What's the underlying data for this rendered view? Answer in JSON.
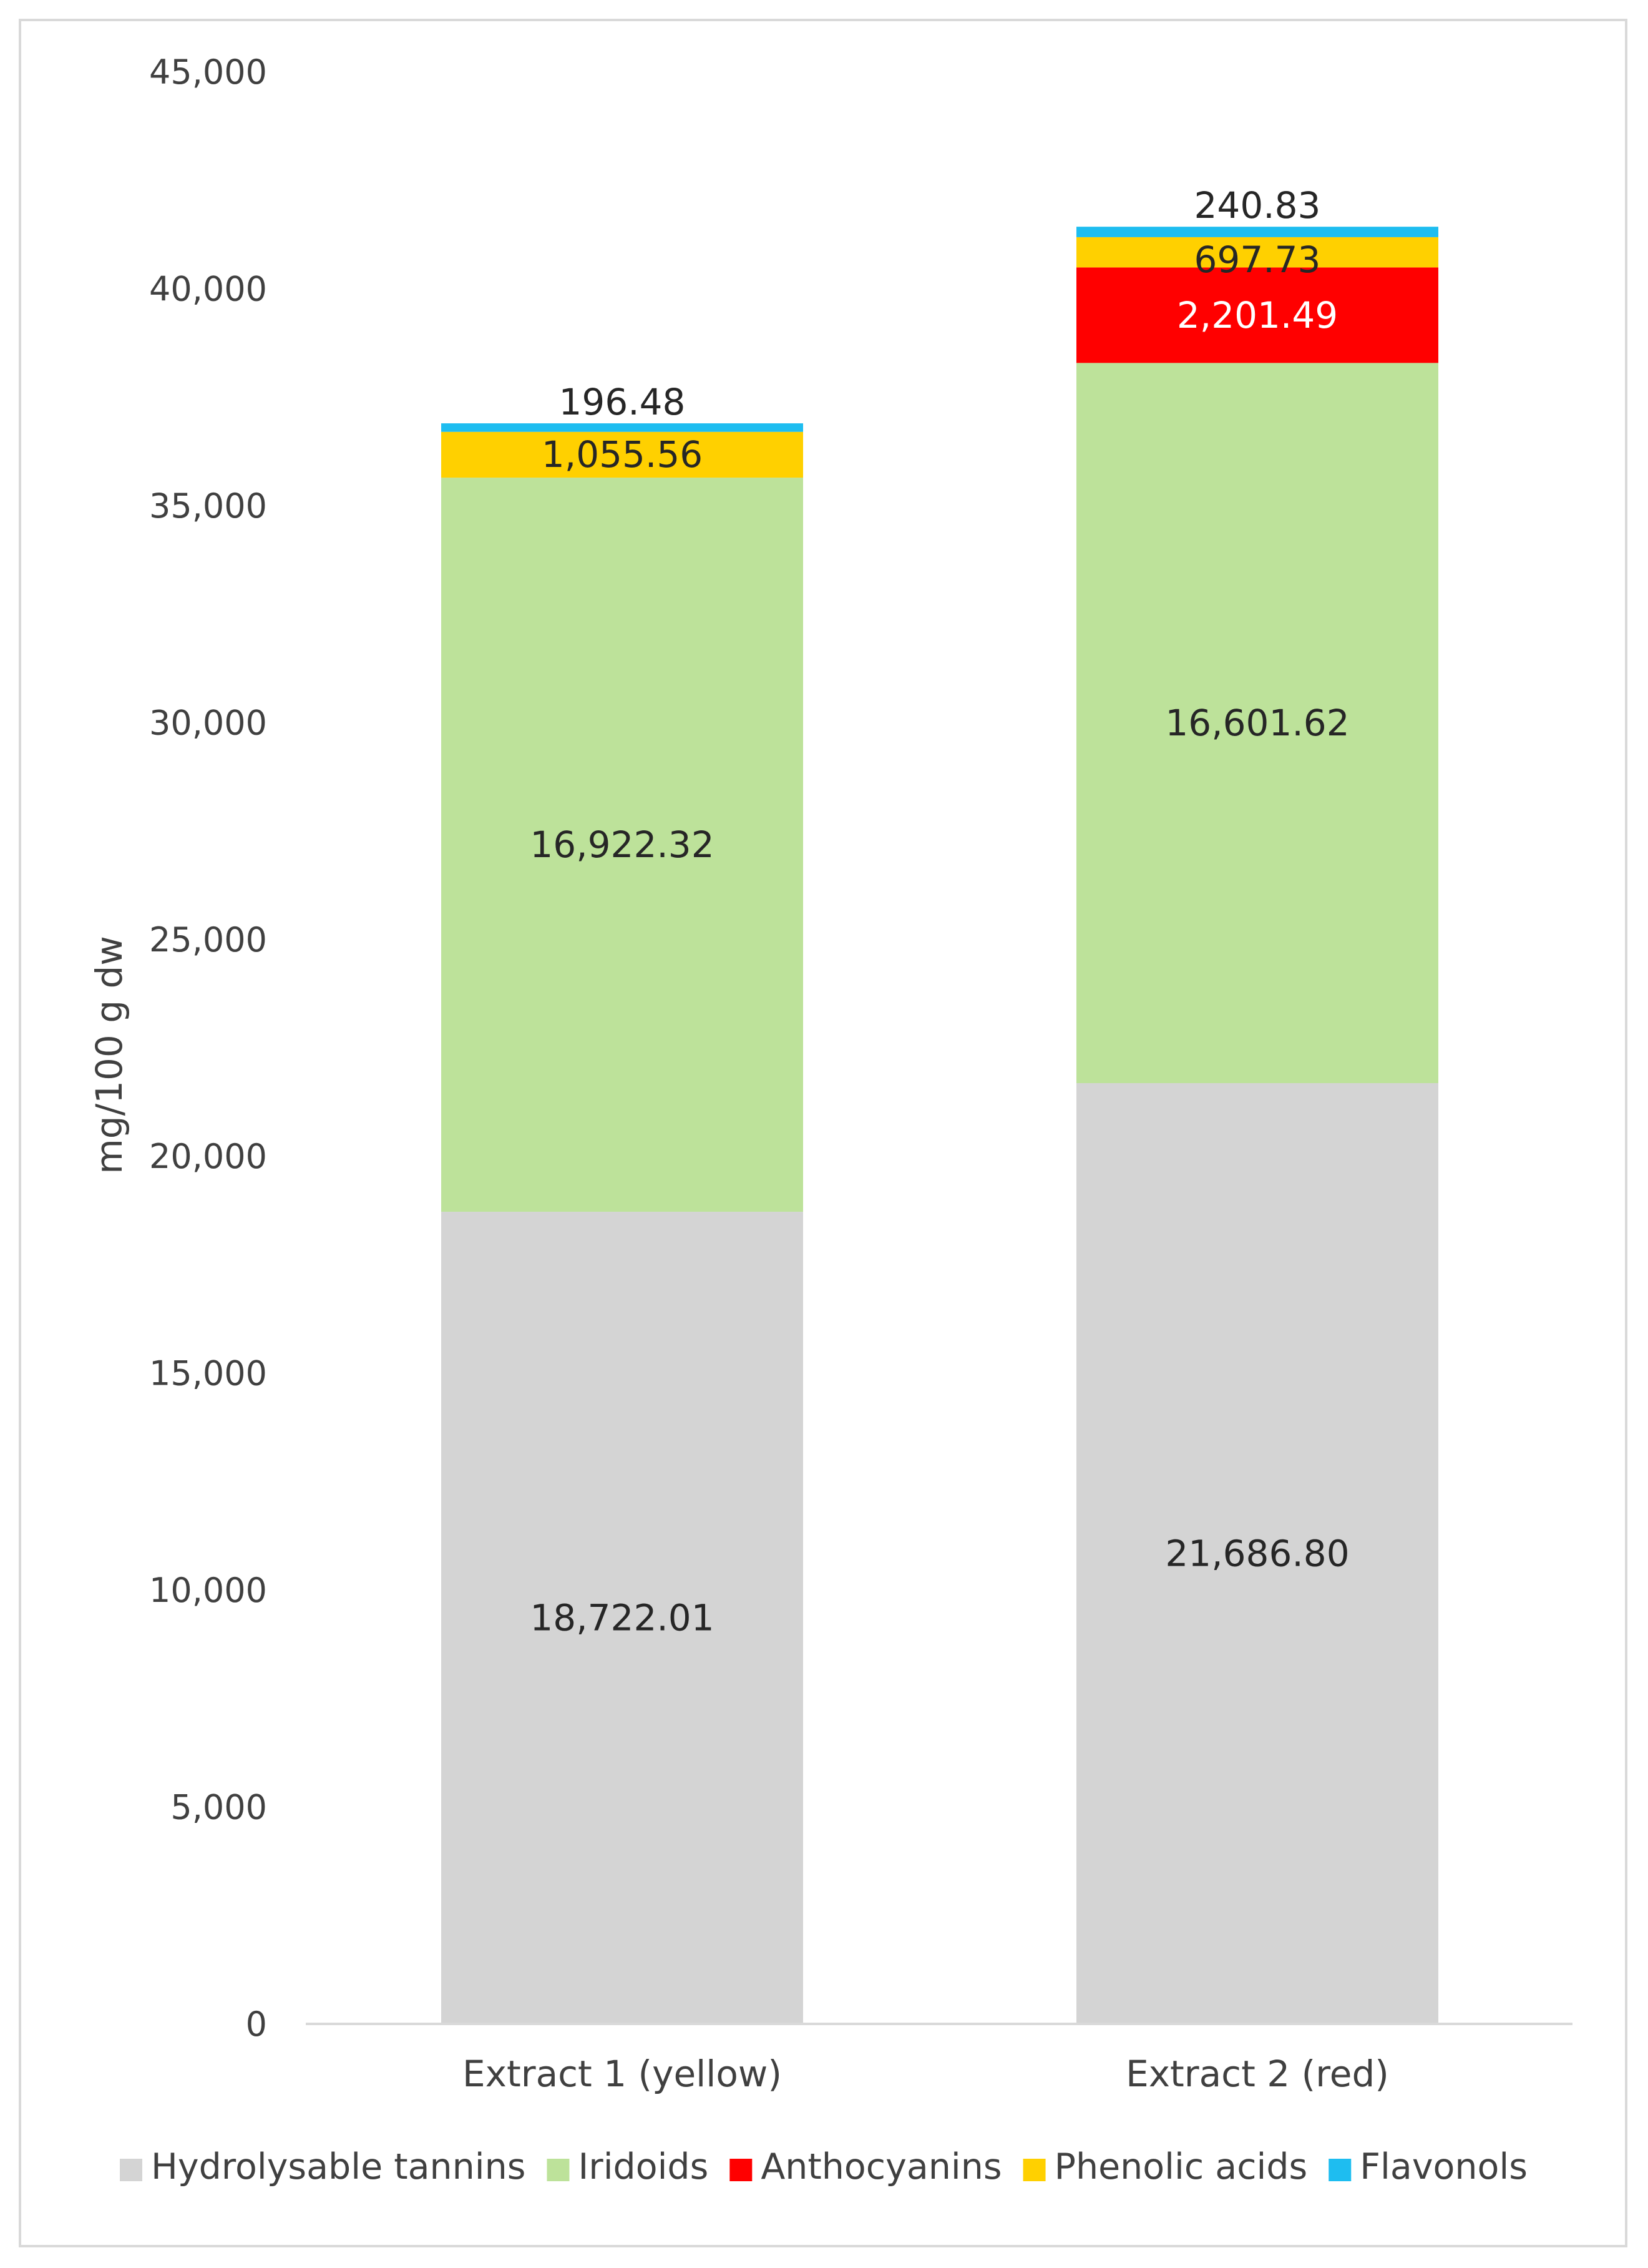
{
  "chart_data": {
    "type": "bar",
    "stacked": true,
    "title": "",
    "xlabel": "",
    "ylabel": "mg/100 g dw",
    "ylim": [
      0,
      45000
    ],
    "yticks": [
      0,
      5000,
      10000,
      15000,
      20000,
      25000,
      30000,
      35000,
      40000,
      45000
    ],
    "ytick_labels": [
      "0",
      "5,000",
      "10,000",
      "15,000",
      "20,000",
      "25,000",
      "30,000",
      "35,000",
      "40,000",
      "45,000"
    ],
    "categories": [
      "Extract 1 (yellow)",
      "Extract 2 (red)"
    ],
    "grid": false,
    "legend_position": "bottom",
    "series": [
      {
        "name": "Hydrolysable tannins",
        "color": "#d4d4d4",
        "values": [
          18722.01,
          21686.8
        ],
        "labels": [
          "18,722.01",
          "21,686.80"
        ],
        "label_color": "#262626",
        "label_pos": "inside"
      },
      {
        "name": "Iridoids",
        "color": "#bde29a",
        "values": [
          16922.32,
          16601.62
        ],
        "labels": [
          "16,922.32",
          "16,601.62"
        ],
        "label_color": "#262626",
        "label_pos": "inside"
      },
      {
        "name": "Anthocyanins",
        "color": "#ff0000",
        "values": [
          0,
          2201.49
        ],
        "labels": [
          "",
          "2,201.49"
        ],
        "label_color": "#ffffff",
        "label_pos": "inside"
      },
      {
        "name": "Phenolic acids",
        "color": "#ffd000",
        "values": [
          1055.56,
          697.73
        ],
        "labels": [
          "1,055.56",
          "697.73"
        ],
        "label_color": "#262626",
        "label_pos": "inside"
      },
      {
        "name": "Flavonols",
        "color": "#1ebdf0",
        "values": [
          196.48,
          240.83
        ],
        "labels": [
          "196.48",
          "240.83"
        ],
        "label_color": "#262626",
        "label_pos": "above"
      }
    ]
  }
}
